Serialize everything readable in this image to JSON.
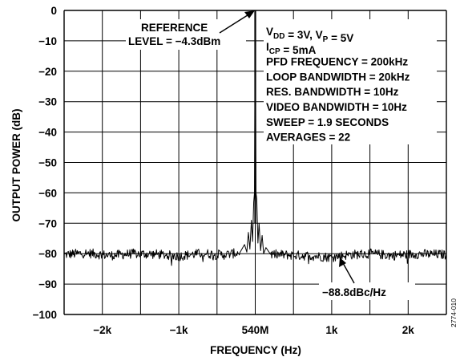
{
  "chart_data": {
    "type": "line",
    "title": "",
    "xlabel": "FREQUENCY (Hz)",
    "ylabel": "OUTPUT POWER (dB)",
    "x_unit": "Hz offset from carrier",
    "xlim": [
      -2500,
      2500
    ],
    "ylim": [
      -100,
      0
    ],
    "xticks": [
      {
        "value": -2000,
        "label": "−2k"
      },
      {
        "value": -1000,
        "label": "−1k"
      },
      {
        "value": 0,
        "label": "540M"
      },
      {
        "value": 1000,
        "label": "1k"
      },
      {
        "value": 2000,
        "label": "2k"
      }
    ],
    "yticks": [
      {
        "value": 0,
        "label": "0"
      },
      {
        "value": -10,
        "label": "−10"
      },
      {
        "value": -20,
        "label": "−20"
      },
      {
        "value": -30,
        "label": "−30"
      },
      {
        "value": -40,
        "label": "−40"
      },
      {
        "value": -50,
        "label": "−50"
      },
      {
        "value": -60,
        "label": "−60"
      },
      {
        "value": -70,
        "label": "−70"
      },
      {
        "value": -80,
        "label": "−80"
      },
      {
        "value": -90,
        "label": "−90"
      },
      {
        "value": -100,
        "label": "−100"
      }
    ],
    "grid": true,
    "series": [
      {
        "noise_floor_db": -80.3,
        "noise_ripple_db": 1.6,
        "points": [
          [
            -2500,
            -80.3
          ],
          [
            -2200,
            -79.8
          ],
          [
            -1900,
            -80.6
          ],
          [
            -1600,
            -80.0
          ],
          [
            -1300,
            -80.2
          ],
          [
            -1000,
            -80.8
          ],
          [
            -700,
            -79.9
          ],
          [
            -400,
            -80.4
          ],
          [
            -200,
            -79.6
          ],
          [
            -140,
            -77.0
          ],
          [
            -110,
            -79.5
          ],
          [
            -90,
            -73.0
          ],
          [
            -70,
            -78.5
          ],
          [
            -50,
            -69.0
          ],
          [
            -35,
            -76.0
          ],
          [
            -20,
            -63.0
          ],
          [
            -10,
            -60.0
          ],
          [
            0,
            0.0
          ],
          [
            10,
            -60.0
          ],
          [
            20,
            -62.0
          ],
          [
            35,
            -76.5
          ],
          [
            50,
            -70.0
          ],
          [
            70,
            -79.0
          ],
          [
            90,
            -74.0
          ],
          [
            110,
            -80.0
          ],
          [
            140,
            -78.0
          ],
          [
            200,
            -80.2
          ],
          [
            500,
            -80.5
          ],
          [
            800,
            -80.8
          ],
          [
            1000,
            -81.2
          ],
          [
            1200,
            -80.4
          ],
          [
            1500,
            -80.0
          ],
          [
            1800,
            -80.6
          ],
          [
            2100,
            -80.1
          ],
          [
            2500,
            -80.3
          ]
        ]
      }
    ],
    "annotations": {
      "reference": [
        "REFERENCE",
        "LEVEL = −4.3dBm"
      ],
      "conditions": [
        {
          "parts": [
            {
              "t": "V"
            },
            {
              "t": "DD",
              "sub": true
            },
            {
              "t": " = 3V, V"
            },
            {
              "t": "P",
              "sub": true
            },
            {
              "t": " = 5V"
            }
          ]
        },
        {
          "parts": [
            {
              "t": "I"
            },
            {
              "t": "CP",
              "sub": true
            },
            {
              "t": " = 5mA"
            }
          ]
        },
        {
          "parts": [
            {
              "t": "PFD FREQUENCY = 200kHz"
            }
          ]
        },
        {
          "parts": [
            {
              "t": "LOOP BANDWIDTH = 20kHz"
            }
          ]
        },
        {
          "parts": [
            {
              "t": "RES. BANDWIDTH = 10Hz"
            }
          ]
        },
        {
          "parts": [
            {
              "t": "VIDEO BANDWIDTH = 10Hz"
            }
          ]
        },
        {
          "parts": [
            {
              "t": "SWEEP = 1.9 SECONDS"
            }
          ]
        },
        {
          "parts": [
            {
              "t": "AVERAGES = 22"
            }
          ]
        }
      ],
      "noise_label": "−88.8dBc/Hz",
      "figure_number": "2774-010"
    }
  }
}
